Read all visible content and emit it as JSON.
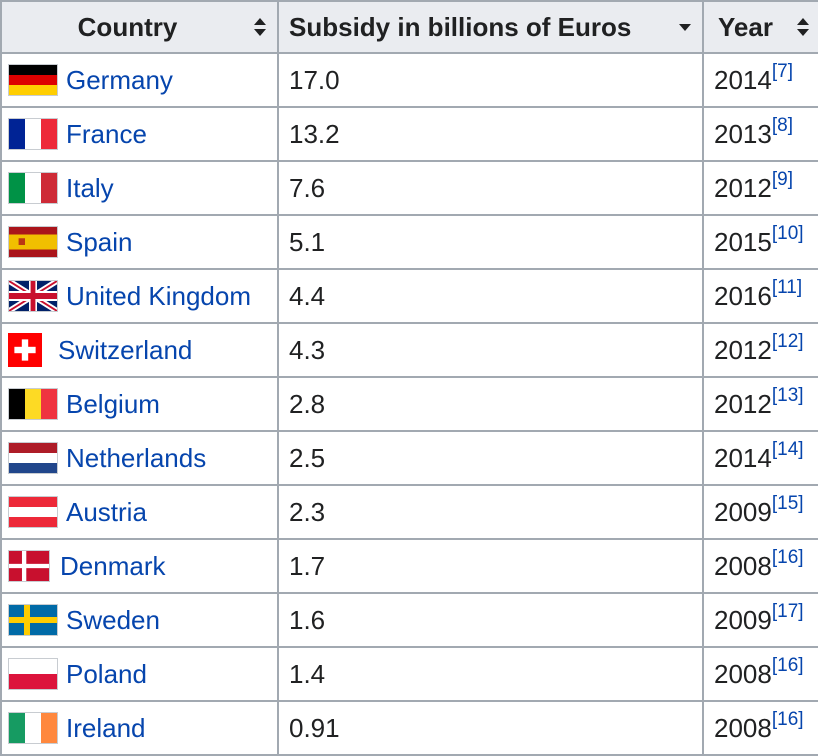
{
  "headers": {
    "country": "Country",
    "subsidy": "Subsidy in billions of Euros",
    "year": "Year"
  },
  "colors": {
    "link": "#0645ad",
    "header_bg": "#eaecf0",
    "border": "#a2a9b1"
  },
  "rows": [
    {
      "country": "Germany",
      "flag": "germany-flag",
      "subsidy": "17.0",
      "year": "2014",
      "ref": "[7]"
    },
    {
      "country": "France",
      "flag": "france-flag",
      "subsidy": "13.2",
      "year": "2013",
      "ref": "[8]"
    },
    {
      "country": "Italy",
      "flag": "italy-flag",
      "subsidy": "7.6",
      "year": "2012",
      "ref": "[9]"
    },
    {
      "country": "Spain",
      "flag": "spain-flag",
      "subsidy": "5.1",
      "year": "2015",
      "ref": "[10]"
    },
    {
      "country": "United Kingdom",
      "flag": "uk-flag",
      "subsidy": "4.4",
      "year": "2016",
      "ref": "[11]"
    },
    {
      "country": "Switzerland",
      "flag": "switzerland-flag",
      "subsidy": "4.3",
      "year": "2012",
      "ref": "[12]"
    },
    {
      "country": "Belgium",
      "flag": "belgium-flag",
      "subsidy": "2.8",
      "year": "2012",
      "ref": "[13]"
    },
    {
      "country": "Netherlands",
      "flag": "netherlands-flag",
      "subsidy": "2.5",
      "year": "2014",
      "ref": "[14]"
    },
    {
      "country": "Austria",
      "flag": "austria-flag",
      "subsidy": "2.3",
      "year": "2009",
      "ref": "[15]"
    },
    {
      "country": "Denmark",
      "flag": "denmark-flag",
      "subsidy": "1.7",
      "year": "2008",
      "ref": "[16]"
    },
    {
      "country": "Sweden",
      "flag": "sweden-flag",
      "subsidy": "1.6",
      "year": "2009",
      "ref": "[17]"
    },
    {
      "country": "Poland",
      "flag": "poland-flag",
      "subsidy": "1.4",
      "year": "2008",
      "ref": "[16]"
    },
    {
      "country": "Ireland",
      "flag": "ireland-flag",
      "subsidy": "0.91",
      "year": "2008",
      "ref": "[16]"
    }
  ]
}
